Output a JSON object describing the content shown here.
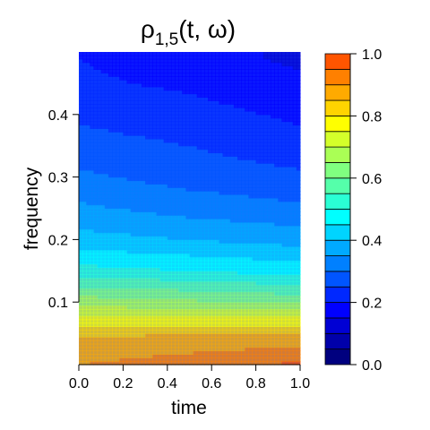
{
  "chart_data": {
    "type": "heatmap",
    "subtype": "filled-contour",
    "title": {
      "symbol": "ρ",
      "subscript": "1,5",
      "args": "(t, ω)"
    },
    "xlabel": "time",
    "ylabel": "frequency",
    "xlim": [
      0.0,
      1.0
    ],
    "ylim": [
      0.0,
      0.5
    ],
    "x_ticks": [
      "0.0",
      "0.2",
      "0.4",
      "0.6",
      "0.8",
      "1.0"
    ],
    "x_tick_values": [
      0.0,
      0.2,
      0.4,
      0.6,
      0.8,
      1.0
    ],
    "y_ticks": [
      "0.1",
      "0.2",
      "0.3",
      "0.4"
    ],
    "y_tick_values": [
      0.1,
      0.2,
      0.3,
      0.4
    ],
    "colorbar": {
      "range": [
        0.0,
        1.0
      ],
      "ticks": [
        "0.0",
        "0.2",
        "0.4",
        "0.6",
        "0.8",
        "1.0"
      ],
      "tick_values": [
        0.0,
        0.2,
        0.4,
        0.6,
        0.8,
        1.0
      ],
      "levels": [
        0.0,
        0.05,
        0.1,
        0.15,
        0.2,
        0.25,
        0.3,
        0.35,
        0.4,
        0.45,
        0.5,
        0.55,
        0.6,
        0.65,
        0.7,
        0.75,
        0.8,
        0.85,
        0.9,
        0.95,
        1.0
      ],
      "colors": [
        "#00007F",
        "#0000AA",
        "#0000D4",
        "#0000FF",
        "#0028FF",
        "#0055FF",
        "#0080FF",
        "#00AAFF",
        "#00D4FF",
        "#00FFFF",
        "#2AFFD4",
        "#55FFAA",
        "#80FF80",
        "#AAFF55",
        "#D4FF2A",
        "#FFFF00",
        "#FFD400",
        "#FFAA00",
        "#FF8000",
        "#FF5500",
        "#FF2A00",
        "#FF0000",
        "#D40000",
        "#AA0000",
        "#7F0000"
      ]
    },
    "contour_sample_values": {
      "description_note": "",
      "time": [
        0.0,
        0.5,
        1.0
      ],
      "frequency": [
        0.0,
        0.05,
        0.1,
        0.15,
        0.2,
        0.25,
        0.3,
        0.35,
        0.4,
        0.45,
        0.49
      ],
      "z_by_time": [
        [
          0.9,
          0.84,
          0.68,
          0.52,
          0.42,
          0.36,
          0.31,
          0.27,
          0.24,
          0.21,
          0.2
        ],
        [
          0.93,
          0.85,
          0.66,
          0.5,
          0.4,
          0.33,
          0.28,
          0.25,
          0.22,
          0.19,
          0.17
        ],
        [
          0.96,
          0.86,
          0.64,
          0.48,
          0.38,
          0.31,
          0.26,
          0.22,
          0.19,
          0.16,
          0.14
        ]
      ]
    }
  }
}
